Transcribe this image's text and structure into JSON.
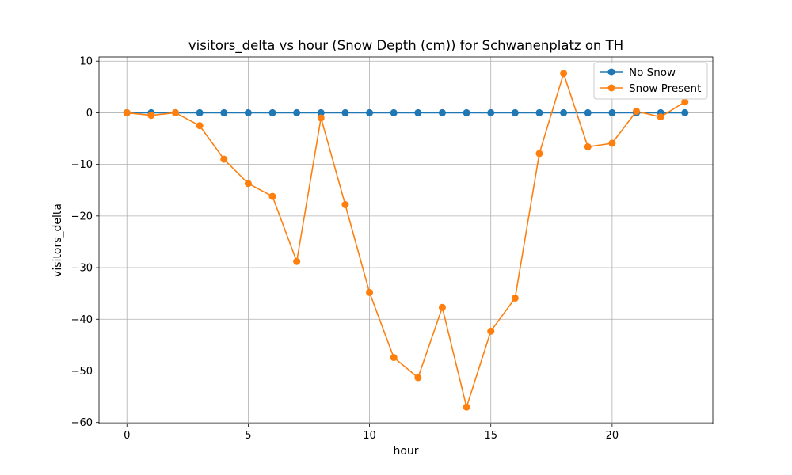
{
  "chart_data": {
    "type": "line",
    "title": "visitors_delta vs hour (Snow Depth (cm)) for Schwanenplatz on TH",
    "xlabel": "hour",
    "ylabel": "visitors_delta",
    "xlim": [
      -1.15,
      24.15
    ],
    "ylim": [
      -60.2,
      10.8
    ],
    "xticks": [
      0,
      5,
      10,
      15,
      20
    ],
    "yticks": [
      10,
      0,
      -10,
      -20,
      -30,
      -40,
      -50,
      -60
    ],
    "ytick_labels": [
      "10",
      "0",
      "−10",
      "−20",
      "−30",
      "−40",
      "−50",
      "−60"
    ],
    "grid": true,
    "legend_position": "top-right",
    "x": [
      0,
      1,
      2,
      3,
      4,
      5,
      6,
      7,
      8,
      9,
      10,
      11,
      12,
      13,
      14,
      15,
      16,
      17,
      18,
      19,
      20,
      21,
      22,
      23
    ],
    "series": [
      {
        "name": "No Snow",
        "color": "#1f77b4",
        "values": [
          0,
          0,
          0,
          0,
          0,
          0,
          0,
          0,
          0,
          0,
          0,
          0,
          0,
          0,
          0,
          0,
          0,
          0,
          0,
          0,
          0,
          0,
          0,
          0
        ]
      },
      {
        "name": "Snow Present",
        "color": "#ff7f0e",
        "values": [
          0,
          -0.5,
          0,
          -2.5,
          -9,
          -13.7,
          -16.2,
          -28.8,
          -1,
          -17.8,
          -34.8,
          -47.4,
          -51.3,
          -37.7,
          -57,
          -42.3,
          -35.9,
          -7.9,
          7.6,
          -6.6,
          -5.9,
          0.3,
          -0.8,
          2.1
        ]
      }
    ]
  }
}
